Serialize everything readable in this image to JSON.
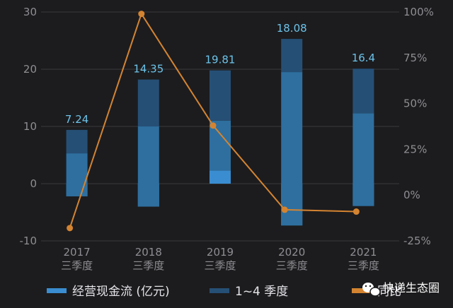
{
  "chart_data": {
    "type": "bar",
    "categories": [
      "2017\n三季度",
      "2018\n三季度",
      "2019\n三季度",
      "2020\n三季度",
      "2021\n三季度"
    ],
    "series": [
      {
        "name": "经营现金流 (亿元)",
        "values": [
          7.24,
          14.35,
          19.81,
          18.08,
          16.4
        ],
        "quarters": [
          [
            -2.2,
            5.3,
            9.4
          ],
          [
            -4.0,
            10.0,
            18.2
          ],
          [
            2.3,
            11.0,
            19.8
          ],
          [
            -7.3,
            19.5,
            25.3
          ],
          [
            -3.9,
            12.3,
            20.1
          ]
        ]
      },
      {
        "name": "1~4 季度"
      },
      {
        "name": "同比",
        "values": [
          -0.18,
          0.99,
          0.38,
          -0.08,
          -0.09
        ]
      }
    ],
    "data_labels": [
      "7.24",
      "14.35",
      "19.81",
      "18.08",
      "16.4"
    ],
    "y_left": {
      "ticks": [
        "30",
        "20",
        "10",
        "0",
        "-10"
      ],
      "range": [
        -10,
        30
      ]
    },
    "y_right": {
      "ticks": [
        "100%",
        "75%",
        "50%",
        "25%",
        "0%",
        "-25%"
      ],
      "range": [
        -0.25,
        1.0
      ]
    },
    "grid": true,
    "legend_position": "bottom",
    "colors": {
      "bar": "#3a8dd0",
      "bar_dark": "#264f75",
      "line": "#d48431",
      "label": "#6cc3ea"
    }
  },
  "watermark": {
    "text": "快递生态圈",
    "icon": "wechat-icon"
  }
}
